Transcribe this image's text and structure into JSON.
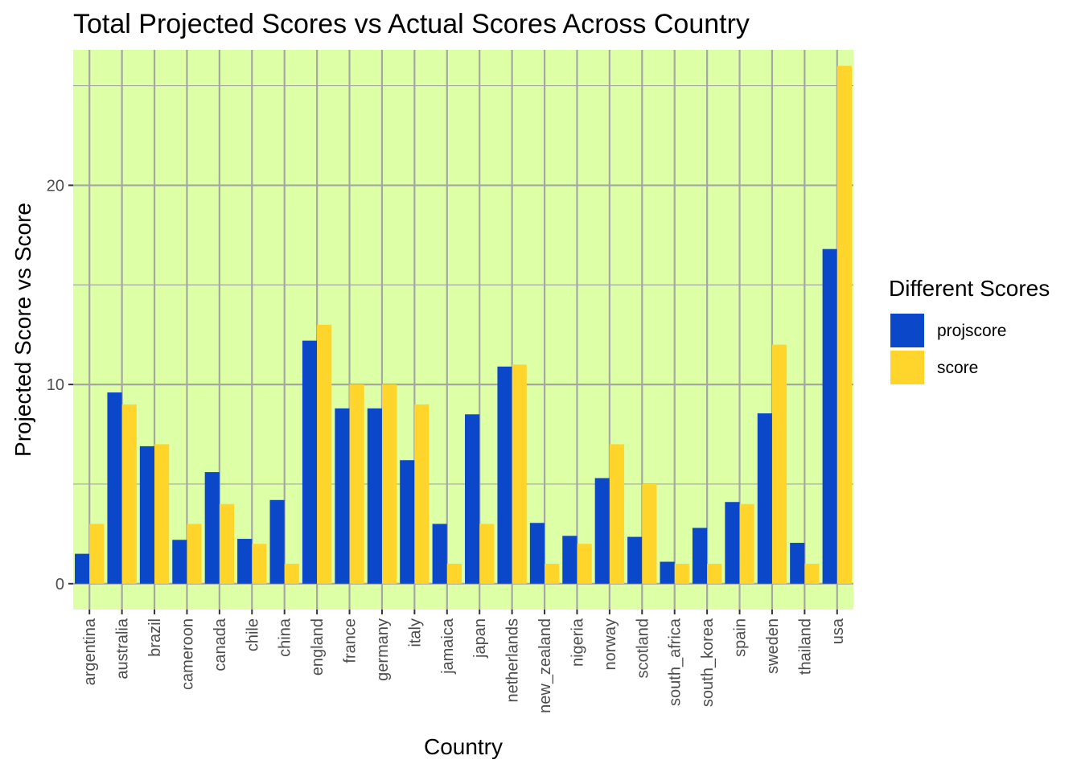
{
  "chart_data": {
    "type": "bar",
    "title": "Total Projected Scores vs Actual Scores Across Country",
    "xlabel": "Country",
    "ylabel": "Projected Score vs Score",
    "ylim": [
      -1.3,
      26.8
    ],
    "yticks": [
      0,
      10,
      20
    ],
    "grid": true,
    "legend": {
      "title": "Different Scores",
      "position": "right"
    },
    "categories": [
      "argentina",
      "australia",
      "brazil",
      "cameroon",
      "canada",
      "chile",
      "china",
      "england",
      "france",
      "germany",
      "italy",
      "jamaica",
      "japan",
      "netherlands",
      "new_zealand",
      "nigeria",
      "norway",
      "scotland",
      "south_africa",
      "south_korea",
      "spain",
      "sweden",
      "thailand",
      "usa"
    ],
    "series": [
      {
        "name": "projscore",
        "color": "#0a47c9",
        "values": [
          1.5,
          9.6,
          6.9,
          2.2,
          5.6,
          2.25,
          4.2,
          12.2,
          8.8,
          8.8,
          6.2,
          3.0,
          8.5,
          10.9,
          3.05,
          2.4,
          5.3,
          2.35,
          1.1,
          2.8,
          4.1,
          8.55,
          2.05,
          16.8
        ]
      },
      {
        "name": "score",
        "color": "#ffd52b",
        "values": [
          3,
          9,
          7,
          3,
          4,
          2,
          1,
          13,
          10,
          10,
          9,
          1,
          3,
          11,
          1,
          2,
          7,
          5,
          1,
          1,
          4,
          12,
          1,
          26
        ]
      }
    ],
    "panel_background": "#ddffa5",
    "grid_color": "#a6a6a6"
  }
}
